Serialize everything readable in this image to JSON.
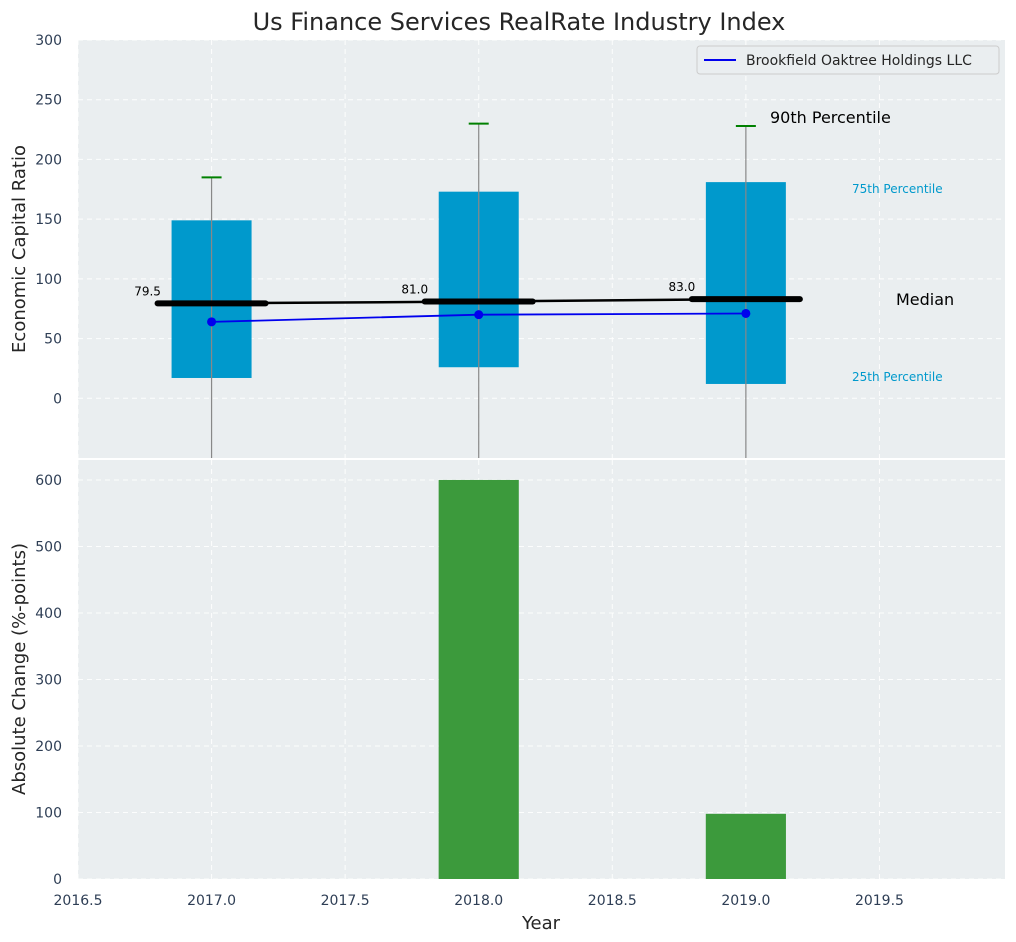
{
  "title": "Us Finance Services RealRate Industry Index",
  "colors": {
    "panel_bg": "#eaeef0",
    "grid": "#ffffff",
    "box": "#0099cc",
    "whisker": "#888888",
    "p90_cap": "#008000",
    "median": "#000000",
    "company": "#0000ee",
    "bar": "#3c9a3c"
  },
  "chart_data": [
    {
      "type": "box",
      "panel": "top",
      "ylabel": "Economic Capital Ratio",
      "ylim": [
        -50,
        300
      ],
      "yticks": [
        0,
        50,
        100,
        150,
        200,
        250,
        300
      ],
      "grid": true,
      "x": [
        2017,
        2018,
        2019
      ],
      "boxes": [
        {
          "year": 2017,
          "q1": 17,
          "median": 79.5,
          "q3": 149,
          "p90": 185,
          "low": -50
        },
        {
          "year": 2018,
          "q1": 26,
          "median": 81.0,
          "q3": 173,
          "p90": 230,
          "low": -50
        },
        {
          "year": 2019,
          "q1": 12,
          "median": 83.0,
          "q3": 181,
          "p90": 228,
          "low": -50
        }
      ],
      "median_labels": [
        "79.5",
        "81.0",
        "83.0"
      ],
      "series": [
        {
          "name": "Brookfield Oaktree Holdings LLC",
          "values": [
            64,
            70,
            71
          ]
        }
      ],
      "legend": {
        "position": "top-right",
        "entries": [
          "Brookfield Oaktree Holdings LLC"
        ]
      },
      "annotations": {
        "p90": "90th Percentile",
        "p75": "75th Percentile",
        "median": "Median",
        "p25": "25th Percentile"
      }
    },
    {
      "type": "bar",
      "panel": "bottom",
      "xlabel": "Year",
      "ylabel": "Absolute Change (%-points)",
      "xlim": [
        2016.5,
        2019.97
      ],
      "ylim": [
        0,
        630
      ],
      "xticks": [
        2016.5,
        2017.0,
        2017.5,
        2018.0,
        2018.5,
        2019.0,
        2019.5
      ],
      "xtick_labels": [
        "2016.5",
        "2017.0",
        "2017.5",
        "2018.0",
        "2018.5",
        "2019.0",
        "2019.5"
      ],
      "yticks": [
        0,
        100,
        200,
        300,
        400,
        500,
        600
      ],
      "grid": true,
      "x": [
        2018,
        2019
      ],
      "values": [
        600,
        98
      ],
      "bar_width": 0.3
    }
  ]
}
